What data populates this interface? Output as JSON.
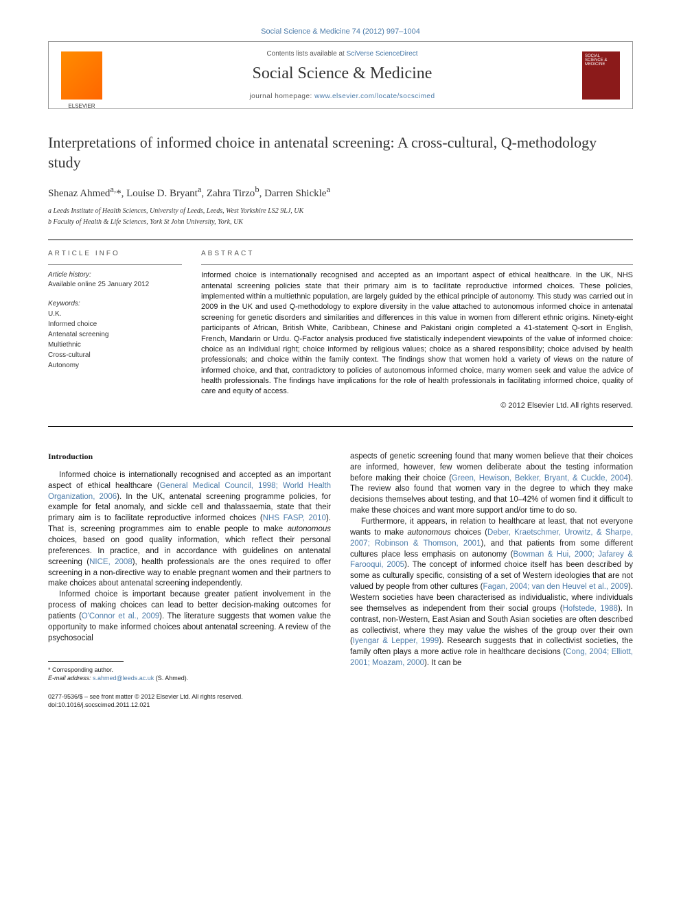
{
  "citation": "Social Science & Medicine 74 (2012) 997–1004",
  "header": {
    "contents_prefix": "Contents lists available at ",
    "contents_link": "SciVerse ScienceDirect",
    "journal": "Social Science & Medicine",
    "homepage_prefix": "journal homepage: ",
    "homepage_url": "www.elsevier.com/locate/socscimed",
    "cover_text": "SOCIAL SCIENCE & MEDICINE"
  },
  "title": "Interpretations of informed choice in antenatal screening: A cross-cultural, Q-methodology study",
  "authors_html": "Shenaz Ahmed<sup>a,</sup>*, Louise D. Bryant<sup>a</sup>, Zahra Tirzo<sup>b</sup>, Darren Shickle<sup>a</sup>",
  "affiliations": [
    "a Leeds Institute of Health Sciences, University of Leeds, Leeds, West Yorkshire LS2 9LJ, UK",
    "b Faculty of Health & Life Sciences, York St John University, York, UK"
  ],
  "info": {
    "section_label": "ARTICLE INFO",
    "history_label": "Article history:",
    "history_text": "Available online 25 January 2012",
    "keywords_label": "Keywords:",
    "keywords": [
      "U.K.",
      "Informed choice",
      "Antenatal screening",
      "Multiethnic",
      "Cross-cultural",
      "Autonomy"
    ]
  },
  "abstract": {
    "section_label": "ABSTRACT",
    "text": "Informed choice is internationally recognised and accepted as an important aspect of ethical healthcare. In the UK, NHS antenatal screening policies state that their primary aim is to facilitate reproductive informed choices. These policies, implemented within a multiethnic population, are largely guided by the ethical principle of autonomy. This study was carried out in 2009 in the UK and used Q-methodology to explore diversity in the value attached to autonomous informed choice in antenatal screening for genetic disorders and similarities and differences in this value in women from different ethnic origins. Ninety-eight participants of African, British White, Caribbean, Chinese and Pakistani origin completed a 41-statement Q-sort in English, French, Mandarin or Urdu. Q-Factor analysis produced five statistically independent viewpoints of the value of informed choice: choice as an individual right; choice informed by religious values; choice as a shared responsibility; choice advised by health professionals; and choice within the family context. The findings show that women hold a variety of views on the nature of informed choice, and that, contradictory to policies of autonomous informed choice, many women seek and value the advice of health professionals. The findings have implications for the role of health professionals in facilitating informed choice, quality of care and equity of access.",
    "copyright": "© 2012 Elsevier Ltd. All rights reserved."
  },
  "body": {
    "intro_heading": "Introduction",
    "col1": [
      {
        "text": "Informed choice is internationally recognised and accepted as an important aspect of ethical healthcare (",
        "refs": [
          "General Medical Council, 1998; World Health Organization, 2006"
        ],
        "after": "). In the UK, antenatal screening programme policies, for example for fetal anomaly, and sickle cell and thalassaemia, state that their primary aim is to facilitate reproductive informed choices (",
        "refs2": [
          "NHS FASP, 2010"
        ],
        "after2": "). That is, screening programmes aim to enable people to make autonomous choices, based on good quality information, which reflect their personal preferences. In practice, and in accordance with guidelines on antenatal screening (",
        "refs3": [
          "NICE, 2008"
        ],
        "after3": "), health professionals are the ones required to offer screening in a non-directive way to enable pregnant women and their partners to make choices about antenatal screening independently."
      },
      {
        "text": "Informed choice is important because greater patient involvement in the process of making choices can lead to better decision-making outcomes for patients (",
        "refs": [
          "O'Connor et al., 2009"
        ],
        "after": "). The literature suggests that women value the opportunity to make informed choices about antenatal screening. A review of the psychosocial"
      }
    ],
    "col2": [
      {
        "text": "aspects of genetic screening found that many women believe that their choices are informed, however, few women deliberate about the testing information before making their choice (",
        "refs": [
          "Green, Hewison, Bekker, Bryant, & Cuckle, 2004"
        ],
        "after": "). The review also found that women vary in the degree to which they make decisions themselves about testing, and that 10–42% of women find it difficult to make these choices and want more support and/or time to do so.",
        "noindent": true
      },
      {
        "text": "Furthermore, it appears, in relation to healthcare at least, that not everyone wants to make autonomous choices (",
        "refs": [
          "Deber, Kraetschmer, Urowitz, & Sharpe, 2007; Robinson & Thomson, 2001"
        ],
        "after": "), and that patients from some different cultures place less emphasis on autonomy (",
        "refs2": [
          "Bowman & Hui, 2000; Jafarey & Farooqui, 2005"
        ],
        "after2": "). The concept of informed choice itself has been described by some as culturally specific, consisting of a set of Western ideologies that are not valued by people from other cultures (",
        "refs3": [
          "Fagan, 2004; van den Heuvel et al., 2009"
        ],
        "after3": "). Western societies have been characterised as individualistic, where individuals see themselves as independent from their social groups (",
        "refs4": [
          "Hofstede, 1988"
        ],
        "after4": "). In contrast, non-Western, East Asian and South Asian societies are often described as collectivist, where they may value the wishes of the group over their own (",
        "refs5": [
          "Iyengar & Lepper, 1999"
        ],
        "after5": "). Research suggests that in collectivist societies, the family often plays a more active role in healthcare decisions (",
        "refs6": [
          "Cong, 2004; Elliott, 2001; Moazam, 2000"
        ],
        "after6": "). It can be"
      }
    ]
  },
  "footer": {
    "corresponding": "* Corresponding author.",
    "email_label": "E-mail address: ",
    "email": "s.ahmed@leeds.ac.uk",
    "email_suffix": " (S. Ahmed).",
    "issn": "0277-9536/$ – see front matter © 2012 Elsevier Ltd. All rights reserved.",
    "doi": "doi:10.1016/j.socscimed.2011.12.021"
  },
  "colors": {
    "link": "#4a7aa8",
    "text": "#1a1a1a",
    "elsevier_orange": "#ff8c00",
    "cover_red": "#8b1a1a"
  },
  "typography": {
    "title_fontsize": 22,
    "journal_fontsize": 24,
    "body_fontsize": 11.5,
    "abstract_fontsize": 11,
    "info_fontsize": 10
  }
}
